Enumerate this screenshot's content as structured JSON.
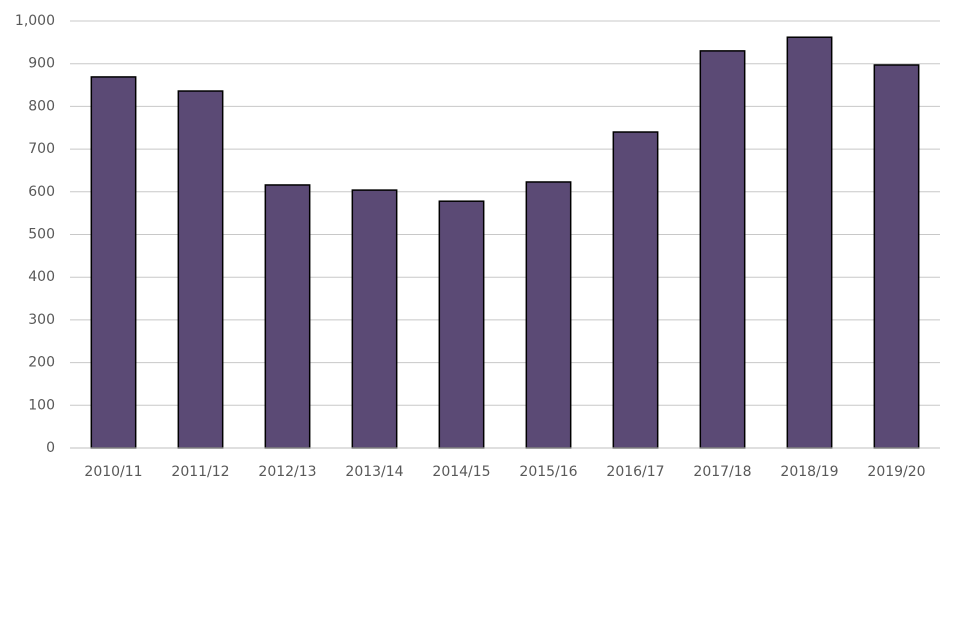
{
  "chart_data": {
    "type": "bar",
    "categories": [
      "2010/11",
      "2011/12",
      "2012/13",
      "2013/14",
      "2014/15",
      "2015/16",
      "2016/17",
      "2017/18",
      "2018/19",
      "2019/20"
    ],
    "values": [
      869,
      836,
      616,
      604,
      578,
      623,
      740,
      930,
      962,
      897
    ],
    "color": "#5b4a75",
    "ylim": [
      0,
      1000
    ],
    "yticks": [
      0,
      100,
      200,
      300,
      400,
      500,
      600,
      700,
      800,
      900,
      {
        "value": 1000,
        "label": "1,000"
      }
    ],
    "grid": true
  }
}
